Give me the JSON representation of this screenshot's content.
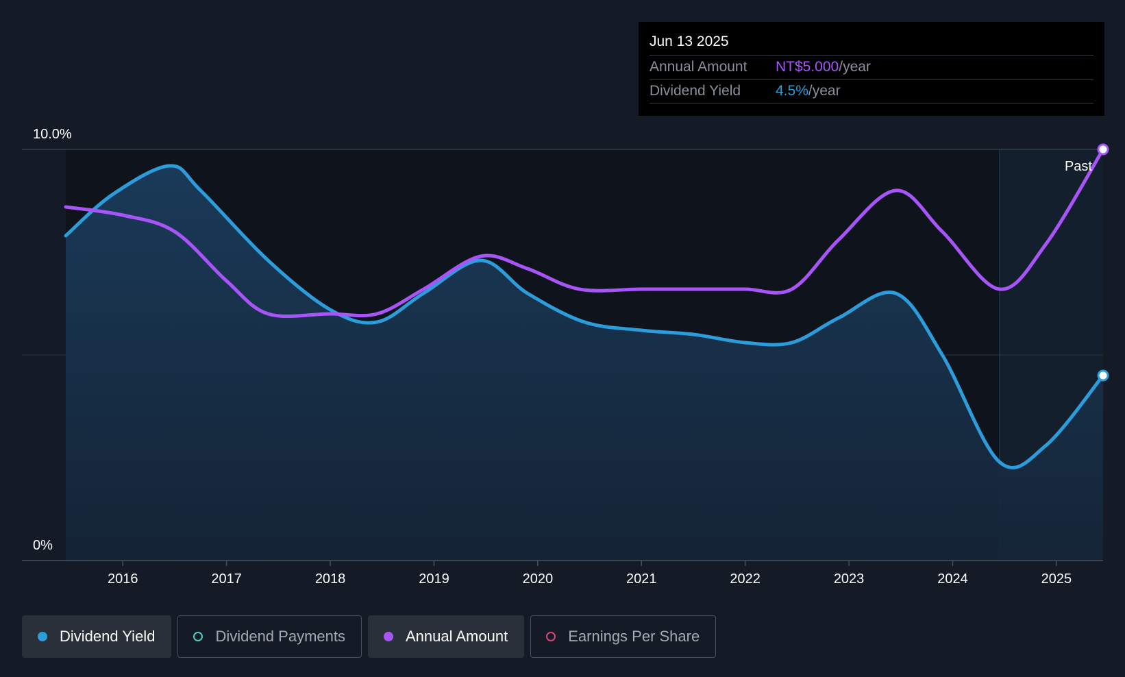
{
  "tooltip": {
    "date": "Jun 13 2025",
    "rows": [
      {
        "label": "Annual Amount",
        "value": "NT$5.000",
        "unit": "/year"
      },
      {
        "label": "Dividend Yield",
        "value": "4.5%",
        "unit": "/year"
      }
    ]
  },
  "legend": [
    {
      "label": "Dividend Yield",
      "color": "#2d9cdb",
      "active": true,
      "filled": true
    },
    {
      "label": "Dividend Payments",
      "color": "#4ecdc4",
      "active": false,
      "filled": false
    },
    {
      "label": "Annual Amount",
      "color": "#a855f7",
      "active": true,
      "filled": true
    },
    {
      "label": "Earnings Per Share",
      "color": "#d9467a",
      "active": false,
      "filled": false
    }
  ],
  "chart_data": {
    "type": "line",
    "x_ticks": [
      "2016",
      "2017",
      "2018",
      "2019",
      "2020",
      "2021",
      "2022",
      "2023",
      "2024",
      "2025"
    ],
    "y_tick_labels": [
      "10.0%",
      "0%"
    ],
    "ylim": [
      0,
      10
    ],
    "past_label": "Past",
    "past_start": 2024.45,
    "colors": {
      "yield": "#2d9cdb",
      "amount": "#a855f7",
      "area": "#17324d"
    },
    "series": [
      {
        "key": "yield",
        "x": [
          2015.45,
          2015.9,
          2016.45,
          2016.75,
          2017.4,
          2018.0,
          2018.45,
          2018.9,
          2019.45,
          2019.9,
          2020.45,
          2021.0,
          2021.5,
          2022.0,
          2022.45,
          2022.9,
          2023.45,
          2023.9,
          2024.45,
          2024.9,
          2025.45
        ],
        "y": [
          7.9,
          8.9,
          9.6,
          9.0,
          7.3,
          6.1,
          5.8,
          6.5,
          7.3,
          6.5,
          5.8,
          5.6,
          5.5,
          5.3,
          5.3,
          5.9,
          6.5,
          5.0,
          2.4,
          2.8,
          4.5
        ]
      },
      {
        "key": "amount",
        "x": [
          2015.45,
          2016.0,
          2016.5,
          2017.0,
          2017.4,
          2018.0,
          2018.45,
          2018.9,
          2019.45,
          2019.9,
          2020.4,
          2021.0,
          2021.5,
          2022.0,
          2022.45,
          2022.9,
          2023.45,
          2023.9,
          2024.45,
          2024.9,
          2025.45
        ],
        "y": [
          8.6,
          8.4,
          8.0,
          6.8,
          6.0,
          6.0,
          6.0,
          6.6,
          7.4,
          7.1,
          6.6,
          6.6,
          6.6,
          6.6,
          6.6,
          7.8,
          9.0,
          8.0,
          6.6,
          7.7,
          10.0
        ]
      }
    ]
  }
}
